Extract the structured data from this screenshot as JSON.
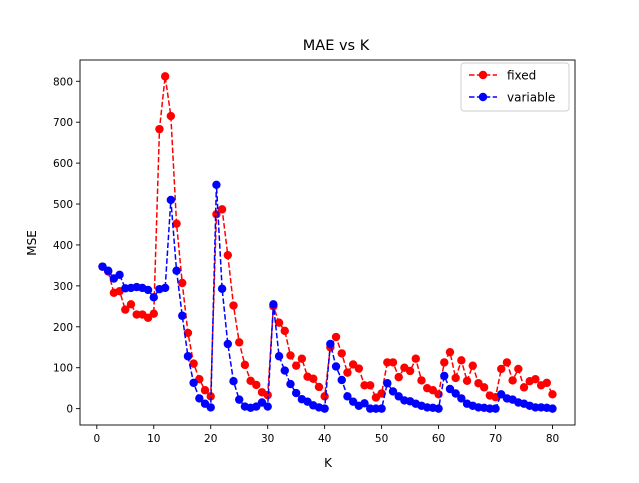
{
  "chart_data": {
    "type": "line",
    "title": "MAE vs K",
    "xlabel": "K",
    "ylabel": "MSE",
    "xlim": [
      -2.95,
      83.95
    ],
    "ylim": [
      -40,
      852
    ],
    "xticks": [
      0,
      10,
      20,
      30,
      40,
      50,
      60,
      70,
      80
    ],
    "yticks": [
      0,
      100,
      200,
      300,
      400,
      500,
      600,
      700,
      800
    ],
    "grid": false,
    "legend_position": "top-right",
    "x": [
      1,
      2,
      3,
      4,
      5,
      6,
      7,
      8,
      9,
      10,
      11,
      12,
      13,
      14,
      15,
      16,
      17,
      18,
      19,
      20,
      21,
      22,
      23,
      24,
      25,
      26,
      27,
      28,
      29,
      30,
      31,
      32,
      33,
      34,
      35,
      36,
      37,
      38,
      39,
      40,
      41,
      42,
      43,
      44,
      45,
      46,
      47,
      48,
      49,
      50,
      51,
      52,
      53,
      54,
      55,
      56,
      57,
      58,
      59,
      60,
      61,
      62,
      63,
      64,
      65,
      66,
      67,
      68,
      69,
      70,
      71,
      72,
      73,
      74,
      75,
      76,
      77,
      78,
      79,
      80
    ],
    "series": [
      {
        "name": "fixed",
        "color": "#ff0000",
        "line_style": "dashed",
        "marker": "circle",
        "values": [
          347,
          335,
          283,
          287,
          242,
          255,
          230,
          230,
          222,
          232,
          683,
          812,
          715,
          452,
          307,
          185,
          110,
          72,
          45,
          30,
          475,
          487,
          375,
          252,
          162,
          107,
          68,
          58,
          40,
          33,
          250,
          210,
          190,
          130,
          105,
          122,
          78,
          73,
          53,
          30,
          150,
          175,
          135,
          88,
          108,
          98,
          57,
          57,
          27,
          37,
          113,
          113,
          77,
          100,
          92,
          122,
          69,
          50,
          45,
          35,
          113,
          138,
          75,
          118,
          68,
          105,
          62,
          52,
          32,
          28,
          97,
          113,
          69,
          97,
          52,
          67,
          72,
          57,
          63,
          35
        ]
      },
      {
        "name": "variable",
        "color": "#0000ff",
        "line_style": "dashed",
        "marker": "circle",
        "values": [
          347,
          337,
          318,
          327,
          294,
          295,
          297,
          295,
          290,
          272,
          292,
          295,
          510,
          337,
          227,
          128,
          63,
          25,
          12,
          3,
          547,
          293,
          158,
          67,
          22,
          5,
          2,
          5,
          15,
          5,
          255,
          128,
          93,
          60,
          38,
          23,
          17,
          8,
          3,
          0,
          158,
          103,
          70,
          30,
          17,
          7,
          13,
          0,
          0,
          0,
          62,
          42,
          30,
          20,
          18,
          12,
          7,
          3,
          2,
          0,
          80,
          48,
          37,
          25,
          12,
          7,
          3,
          2,
          0,
          0,
          35,
          25,
          22,
          15,
          12,
          7,
          3,
          3,
          2,
          0
        ]
      }
    ]
  }
}
